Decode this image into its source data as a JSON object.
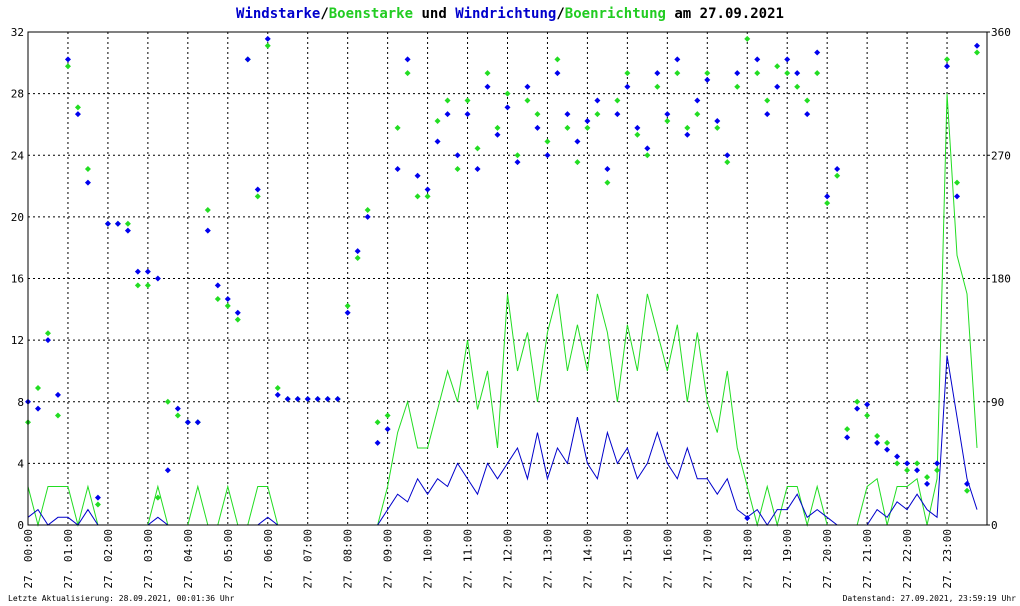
{
  "chart_data": {
    "type": "line",
    "title_parts": [
      {
        "text": "Windstarke",
        "color": "#0000cc"
      },
      {
        "text": "/",
        "color": "#000000"
      },
      {
        "text": "Boenstarke",
        "color": "#22cc22"
      },
      {
        "text": " und ",
        "color": "#000000"
      },
      {
        "text": "Windrichtung",
        "color": "#0000cc"
      },
      {
        "text": "/",
        "color": "#000000"
      },
      {
        "text": "Boenrichtung",
        "color": "#22cc22"
      },
      {
        "text": " am 27.09.2021",
        "color": "#000000"
      }
    ],
    "footer_left": "Letzte Aktualisierung: 28.09.2021, 00:01:36 Uhr",
    "footer_right": "Datenstand: 27.09.2021, 23:59:19 Uhr",
    "grid": true,
    "xlim": [
      0,
      24
    ],
    "xticks": [
      {
        "value": 0,
        "label": "27. 00:00"
      },
      {
        "value": 1,
        "label": "27. 01:00"
      },
      {
        "value": 2,
        "label": "27. 02:00"
      },
      {
        "value": 3,
        "label": "27. 03:00"
      },
      {
        "value": 4,
        "label": "27. 04:00"
      },
      {
        "value": 5,
        "label": "27. 05:00"
      },
      {
        "value": 6,
        "label": "27. 06:00"
      },
      {
        "value": 7,
        "label": "27. 07:00"
      },
      {
        "value": 8,
        "label": "27. 08:00"
      },
      {
        "value": 9,
        "label": "27. 09:00"
      },
      {
        "value": 10,
        "label": "27. 10:00"
      },
      {
        "value": 11,
        "label": "27. 11:00"
      },
      {
        "value": 12,
        "label": "27. 12:00"
      },
      {
        "value": 13,
        "label": "27. 13:00"
      },
      {
        "value": 14,
        "label": "27. 14:00"
      },
      {
        "value": 15,
        "label": "27. 15:00"
      },
      {
        "value": 16,
        "label": "27. 16:00"
      },
      {
        "value": 17,
        "label": "27. 17:00"
      },
      {
        "value": 18,
        "label": "27. 18:00"
      },
      {
        "value": 19,
        "label": "27. 19:00"
      },
      {
        "value": 20,
        "label": "27. 20:00"
      },
      {
        "value": 21,
        "label": "27. 21:00"
      },
      {
        "value": 22,
        "label": "27. 22:00"
      },
      {
        "value": 23,
        "label": "27. 23:00"
      }
    ],
    "ylim": [
      0,
      32
    ],
    "yticks": [
      0,
      4,
      8,
      12,
      16,
      20,
      24,
      28,
      32
    ],
    "y2lim": [
      0,
      360
    ],
    "y2ticks": [
      0,
      90,
      180,
      270,
      360
    ],
    "x": [
      0,
      0.25,
      0.5,
      0.75,
      1,
      1.25,
      1.5,
      1.75,
      2,
      2.25,
      2.5,
      2.75,
      3,
      3.25,
      3.5,
      3.75,
      4,
      4.25,
      4.5,
      4.75,
      5,
      5.25,
      5.5,
      5.75,
      6,
      6.25,
      6.5,
      6.75,
      7,
      7.25,
      7.5,
      7.75,
      8,
      8.25,
      8.5,
      8.75,
      9,
      9.25,
      9.5,
      9.75,
      10,
      10.25,
      10.5,
      10.75,
      11,
      11.25,
      11.5,
      11.75,
      12,
      12.25,
      12.5,
      12.75,
      13,
      13.25,
      13.5,
      13.75,
      14,
      14.25,
      14.5,
      14.75,
      15,
      15.25,
      15.5,
      15.75,
      16,
      16.25,
      16.5,
      16.75,
      17,
      17.25,
      17.5,
      17.75,
      18,
      18.25,
      18.5,
      18.75,
      19,
      19.25,
      19.5,
      19.75,
      20,
      20.25,
      20.5,
      20.75,
      21,
      21.25,
      21.5,
      21.75,
      22,
      22.25,
      22.5,
      22.75,
      23,
      23.25,
      23.5,
      23.75
    ],
    "series": [
      {
        "kind": "line",
        "color": "#22dd22",
        "values": [
          2.5,
          0,
          2.5,
          2.5,
          2.5,
          0,
          2.5,
          0,
          0,
          0,
          0,
          0,
          0,
          2.5,
          0,
          0,
          0,
          2.5,
          0,
          0,
          2.5,
          0,
          0,
          2.5,
          2.5,
          0,
          0,
          0,
          0,
          0,
          0,
          0,
          0,
          0,
          0,
          0,
          2.5,
          6,
          8,
          5,
          5,
          7.5,
          10,
          8,
          12,
          7.5,
          10,
          5,
          15,
          10,
          12.5,
          8,
          12.5,
          15,
          10,
          13,
          10,
          15,
          12.5,
          8,
          13,
          10,
          15,
          12.5,
          10,
          13,
          8,
          12.5,
          8,
          6,
          10,
          5,
          2.5,
          0,
          2.5,
          0,
          2.5,
          2.5,
          0,
          2.5,
          0,
          0,
          0,
          0,
          2.5,
          3,
          0,
          2.5,
          2.5,
          3,
          0,
          3,
          28,
          17.5,
          15,
          5
        ]
      },
      {
        "kind": "line",
        "color": "#0000cc",
        "values": [
          0.5,
          1,
          0,
          0.5,
          0.5,
          0,
          1,
          0,
          0,
          0,
          0,
          0,
          0,
          0.5,
          0,
          0,
          0,
          0,
          0,
          0,
          0,
          0,
          0,
          0,
          0.5,
          0,
          0,
          0,
          0,
          0,
          0,
          0,
          0,
          0,
          0,
          0,
          1,
          2,
          1.5,
          3,
          2,
          3,
          2.5,
          4,
          3,
          2,
          4,
          3,
          4,
          5,
          3,
          6,
          3,
          5,
          4,
          7,
          4,
          3,
          6,
          4,
          5,
          3,
          4,
          6,
          4,
          3,
          5,
          3,
          3,
          2,
          3,
          1,
          0.5,
          1,
          0,
          1,
          1,
          2,
          0.5,
          1,
          0.5,
          0,
          0,
          0,
          0,
          1,
          0.5,
          1.5,
          1,
          2,
          1,
          0.5,
          11,
          7,
          3,
          1
        ]
      },
      {
        "kind": "dots",
        "axis": "y2",
        "color": "#22dd22",
        "values": [
          75,
          100,
          140,
          80,
          335,
          305,
          260,
          15,
          220,
          220,
          220,
          175,
          175,
          20,
          90,
          80,
          75,
          75,
          230,
          165,
          160,
          150,
          340,
          240,
          350,
          100,
          92,
          92,
          92,
          92,
          92,
          92,
          160,
          195,
          230,
          75,
          80,
          290,
          330,
          240,
          240,
          295,
          310,
          260,
          310,
          275,
          330,
          290,
          315,
          270,
          310,
          300,
          280,
          340,
          290,
          265,
          290,
          300,
          250,
          310,
          330,
          285,
          270,
          320,
          295,
          330,
          290,
          300,
          330,
          290,
          265,
          320,
          355,
          330,
          310,
          335,
          330,
          320,
          310,
          330,
          235,
          255,
          70,
          90,
          80,
          65,
          60,
          45,
          40,
          45,
          35,
          40,
          340,
          250,
          25,
          345
        ]
      },
      {
        "kind": "dots",
        "axis": "y2",
        "color": "#0000ee",
        "values": [
          90,
          85,
          135,
          95,
          340,
          300,
          250,
          20,
          220,
          220,
          215,
          185,
          185,
          180,
          40,
          85,
          75,
          75,
          215,
          175,
          165,
          155,
          340,
          245,
          355,
          95,
          92,
          92,
          92,
          92,
          92,
          92,
          155,
          200,
          225,
          60,
          70,
          260,
          340,
          255,
          245,
          280,
          300,
          270,
          300,
          260,
          320,
          285,
          305,
          265,
          320,
          290,
          270,
          330,
          300,
          280,
          295,
          310,
          260,
          300,
          320,
          290,
          275,
          330,
          300,
          340,
          285,
          310,
          325,
          295,
          270,
          330,
          5,
          340,
          300,
          320,
          340,
          330,
          300,
          345,
          240,
          260,
          64,
          85,
          88,
          60,
          55,
          50,
          45,
          40,
          30,
          45,
          335,
          240,
          30,
          350
        ]
      }
    ]
  }
}
